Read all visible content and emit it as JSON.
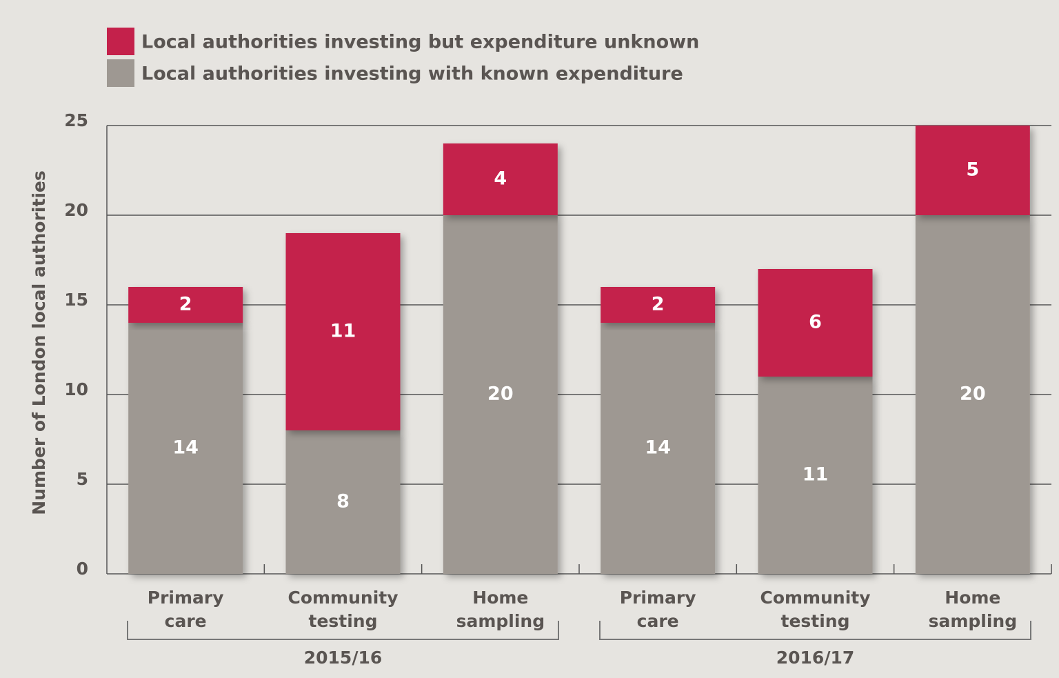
{
  "chart_data": {
    "type": "stacked_bar",
    "y_label": "Number of London local authorities",
    "categories": [
      "Primary care",
      "Community testing",
      "Home sampling",
      "Primary care",
      "Community testing",
      "Home sampling"
    ],
    "groups": [
      "2015/16",
      "2016/17"
    ],
    "series": [
      {
        "name": "Local authorities investing with known expenditure",
        "color": "#9e9892",
        "values": [
          14,
          8,
          20,
          14,
          11,
          20
        ]
      },
      {
        "name": "Local authorities investing but expenditure unknown",
        "color": "#c4214b",
        "values": [
          2,
          11,
          4,
          2,
          6,
          5
        ]
      }
    ],
    "ylim": [
      0,
      25
    ],
    "yticks": [
      0,
      5,
      10,
      15,
      20,
      25
    ],
    "grid": true
  }
}
